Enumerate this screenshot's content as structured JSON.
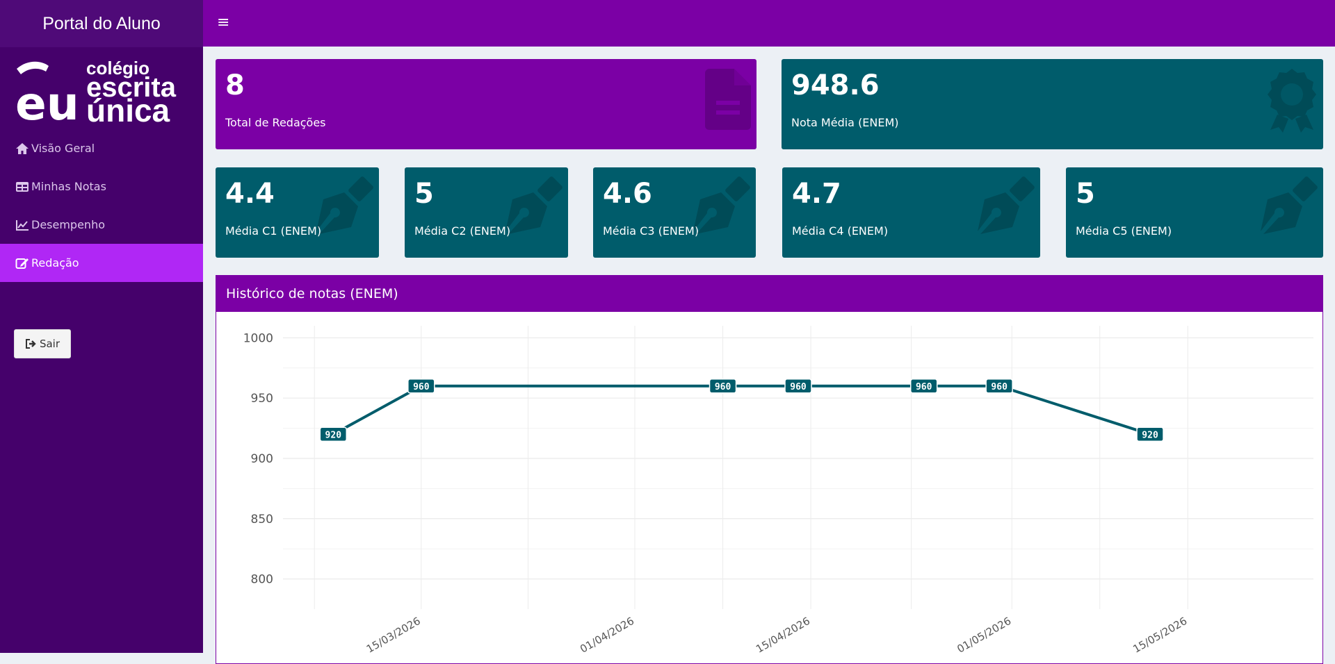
{
  "app": {
    "brand": "Portal do Aluno",
    "logo_text": {
      "line1": "colégio",
      "line2": "escrita",
      "line3": "única",
      "mark": "eu"
    }
  },
  "nav": {
    "items": [
      {
        "label": "Visão Geral",
        "icon": "home-icon"
      },
      {
        "label": "Minhas Notas",
        "icon": "table-icon"
      },
      {
        "label": "Desempenho",
        "icon": "line-chart-icon"
      },
      {
        "label": "Redação",
        "icon": "edit-icon",
        "active": true
      }
    ],
    "logout_label": "Sair"
  },
  "header": {
    "menu_icon": "≡"
  },
  "stats": {
    "total": {
      "value": "8",
      "label": "Total de Redações",
      "icon": "document-icon"
    },
    "media": {
      "value": "948.6",
      "label": "Nota Média (ENEM)",
      "icon": "award-icon"
    },
    "c1": {
      "value": "4.4",
      "label": "Média C1 (ENEM)",
      "icon": "pen-nib-icon"
    },
    "c2": {
      "value": "5",
      "label": "Média C2 (ENEM)",
      "icon": "pen-nib-icon"
    },
    "c3": {
      "value": "4.6",
      "label": "Média C3 (ENEM)",
      "icon": "pen-nib-icon"
    },
    "c4": {
      "value": "4.7",
      "label": "Média C4 (ENEM)",
      "icon": "pen-nib-icon"
    },
    "c5": {
      "value": "5",
      "label": "Média C5 (ENEM)",
      "icon": "pen-nib-icon"
    }
  },
  "panel": {
    "title": "Histórico de notas (ENEM)"
  },
  "colors": {
    "purple": "#7b00a5",
    "sidebar": "#45016b",
    "active": "#b027f5",
    "teal": "#005c6b"
  },
  "chart_data": {
    "type": "line",
    "series": [
      {
        "x": [
          "2026-03-08",
          "2026-03-15",
          "2026-04-08",
          "2026-04-14",
          "2026-04-24",
          "2026-04-30",
          "2026-05-12"
        ],
        "y": [
          920,
          960,
          960,
          960,
          960,
          960,
          920
        ]
      }
    ],
    "data_labels": [
      "920",
      "960",
      "960",
      "960",
      "960",
      "960",
      "920"
    ],
    "ylim": [
      775,
      1010
    ],
    "yticks": [
      800,
      850,
      900,
      950,
      1000
    ],
    "xticks": [
      {
        "date": "2026-03-15",
        "label": "15/03/2026"
      },
      {
        "date": "2026-04-01",
        "label": "01/04/2026"
      },
      {
        "date": "2026-04-15",
        "label": "15/04/2026"
      },
      {
        "date": "2026-05-01",
        "label": "01/05/2026"
      },
      {
        "date": "2026-05-15",
        "label": "15/05/2026"
      }
    ],
    "xlim": [
      "2026-03-04",
      "2026-05-25"
    ],
    "grid": true,
    "line_color": "#005c6b"
  }
}
